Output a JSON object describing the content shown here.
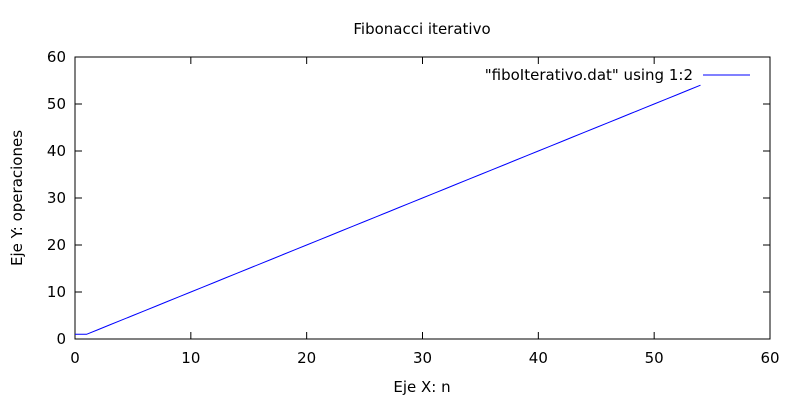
{
  "chart_data": {
    "type": "line",
    "title": "Fibonacci iterativo",
    "xlabel": "Eje X: n",
    "ylabel": "Eje Y: operaciones",
    "xlim": [
      0,
      60
    ],
    "ylim": [
      0,
      60
    ],
    "xticks": [
      0,
      10,
      20,
      30,
      40,
      50,
      60
    ],
    "yticks": [
      0,
      10,
      20,
      30,
      40,
      50,
      60
    ],
    "grid": false,
    "legend_position": "top-right",
    "series": [
      {
        "name": "\"fiboIterativo.dat\" using 1:2",
        "color": "#0000ff",
        "x": [
          0,
          1,
          2,
          3,
          4,
          5,
          6,
          7,
          8,
          9,
          10,
          11,
          12,
          13,
          14,
          15,
          16,
          17,
          18,
          19,
          20,
          21,
          22,
          23,
          24,
          25,
          26,
          27,
          28,
          29,
          30,
          31,
          32,
          33,
          34,
          35,
          36,
          37,
          38,
          39,
          40,
          41,
          42,
          43,
          44,
          45,
          46,
          47,
          48,
          49,
          50,
          51,
          52,
          53,
          54
        ],
        "y": [
          1,
          1,
          2,
          3,
          4,
          5,
          6,
          7,
          8,
          9,
          10,
          11,
          12,
          13,
          14,
          15,
          16,
          17,
          18,
          19,
          20,
          21,
          22,
          23,
          24,
          25,
          26,
          27,
          28,
          29,
          30,
          31,
          32,
          33,
          34,
          35,
          36,
          37,
          38,
          39,
          40,
          41,
          42,
          43,
          44,
          45,
          46,
          47,
          48,
          49,
          50,
          51,
          52,
          53,
          54
        ]
      }
    ]
  }
}
